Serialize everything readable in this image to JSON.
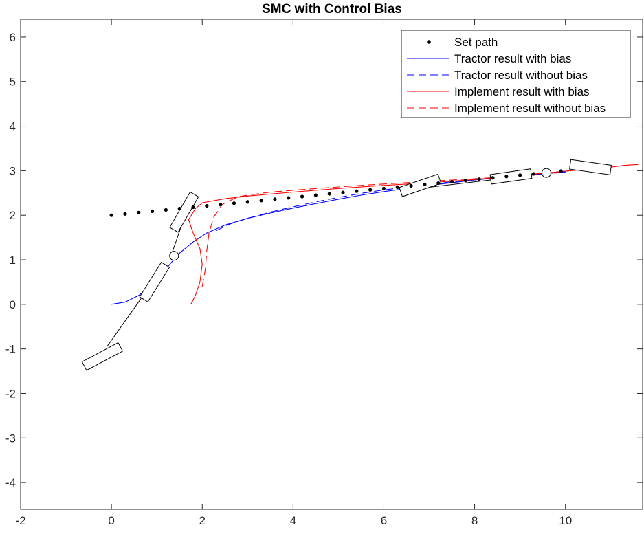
{
  "chart_data": {
    "type": "line",
    "title": "SMC with Control Bias",
    "xlabel": "",
    "ylabel": "",
    "xlim": [
      -2,
      11.7
    ],
    "ylim": [
      -4.6,
      6.4
    ],
    "x_ticks": [
      "-2",
      "0",
      "2",
      "4",
      "6",
      "8",
      "10"
    ],
    "y_ticks": [
      "-4",
      "-3",
      "-2",
      "-1",
      "0",
      "1",
      "2",
      "3",
      "4",
      "5",
      "6"
    ],
    "grid": false,
    "legend_position": "top-right",
    "legend": [
      {
        "label": "Set path",
        "style": "dots",
        "color": "#000000"
      },
      {
        "label": "Tractor result with bias",
        "style": "solid",
        "color": "#0000ff"
      },
      {
        "label": "Tractor result without bias",
        "style": "dashed",
        "color": "#0000ff"
      },
      {
        "label": "Implement result with bias",
        "style": "solid",
        "color": "#ff0000"
      },
      {
        "label": "Implement result without bias",
        "style": "dashed",
        "color": "#ff0000"
      }
    ],
    "series": [
      {
        "name": "Set path",
        "color": "#000000",
        "style": "dots",
        "points": [
          [
            0,
            2.0
          ],
          [
            0.3,
            2.03
          ],
          [
            0.6,
            2.06
          ],
          [
            0.9,
            2.09
          ],
          [
            1.2,
            2.12
          ],
          [
            1.5,
            2.15
          ],
          [
            1.8,
            2.18
          ],
          [
            2.1,
            2.21
          ],
          [
            2.4,
            2.24
          ],
          [
            2.7,
            2.27
          ],
          [
            3.0,
            2.3
          ],
          [
            3.3,
            2.33
          ],
          [
            3.6,
            2.36
          ],
          [
            3.9,
            2.39
          ],
          [
            4.2,
            2.42
          ],
          [
            4.5,
            2.45
          ],
          [
            4.8,
            2.48
          ],
          [
            5.1,
            2.51
          ],
          [
            5.4,
            2.54
          ],
          [
            5.7,
            2.57
          ],
          [
            6.0,
            2.6
          ],
          [
            6.3,
            2.63
          ],
          [
            6.6,
            2.66
          ],
          [
            6.9,
            2.69
          ],
          [
            7.2,
            2.72
          ],
          [
            7.5,
            2.75
          ],
          [
            7.8,
            2.78
          ],
          [
            8.1,
            2.81
          ],
          [
            8.4,
            2.84
          ],
          [
            8.7,
            2.87
          ],
          [
            9.0,
            2.9
          ],
          [
            9.3,
            2.93
          ],
          [
            9.6,
            2.96
          ],
          [
            9.9,
            2.99
          ]
        ]
      },
      {
        "name": "Tractor result with bias",
        "color": "#0000ff",
        "style": "solid",
        "points": [
          [
            0,
            0
          ],
          [
            0.3,
            0.05
          ],
          [
            0.6,
            0.2
          ],
          [
            0.9,
            0.45
          ],
          [
            1.2,
            0.8
          ],
          [
            1.5,
            1.15
          ],
          [
            1.8,
            1.4
          ],
          [
            2.1,
            1.6
          ],
          [
            2.5,
            1.78
          ],
          [
            3.0,
            1.93
          ],
          [
            3.5,
            2.05
          ],
          [
            4.0,
            2.16
          ],
          [
            4.5,
            2.26
          ],
          [
            5.0,
            2.36
          ],
          [
            5.5,
            2.45
          ],
          [
            6.0,
            2.53
          ],
          [
            6.5,
            2.6
          ],
          [
            7.0,
            2.67
          ],
          [
            7.5,
            2.73
          ],
          [
            8.0,
            2.79
          ],
          [
            8.5,
            2.84
          ],
          [
            9.0,
            2.89
          ],
          [
            9.5,
            2.93
          ],
          [
            10.0,
            2.97
          ]
        ]
      },
      {
        "name": "Tractor result without bias",
        "color": "#0000ff",
        "style": "dashed",
        "points": [
          [
            2.3,
            1.65
          ],
          [
            2.6,
            1.8
          ],
          [
            3.0,
            1.93
          ],
          [
            3.5,
            2.07
          ],
          [
            4.0,
            2.19
          ],
          [
            4.5,
            2.3
          ],
          [
            5.0,
            2.4
          ],
          [
            5.5,
            2.49
          ],
          [
            6.0,
            2.57
          ],
          [
            6.5,
            2.63
          ],
          [
            7.0,
            2.69
          ],
          [
            7.5,
            2.75
          ],
          [
            8.0,
            2.8
          ],
          [
            8.5,
            2.85
          ],
          [
            9.0,
            2.9
          ],
          [
            9.5,
            2.94
          ],
          [
            10.0,
            2.98
          ]
        ]
      },
      {
        "name": "Implement result with bias",
        "color": "#ff0000",
        "style": "solid",
        "points": [
          [
            1.75,
            0.0
          ],
          [
            1.85,
            0.2
          ],
          [
            1.95,
            0.5
          ],
          [
            2.0,
            0.9
          ],
          [
            1.95,
            1.25
          ],
          [
            1.8,
            1.6
          ],
          [
            1.7,
            1.9
          ],
          [
            1.85,
            2.15
          ],
          [
            2.0,
            2.28
          ],
          [
            2.5,
            2.37
          ],
          [
            3.0,
            2.43
          ],
          [
            4.0,
            2.52
          ],
          [
            5.0,
            2.6
          ],
          [
            6.0,
            2.67
          ],
          [
            7.0,
            2.73
          ],
          [
            8.0,
            2.8
          ],
          [
            9.0,
            2.9
          ],
          [
            10.0,
            2.99
          ],
          [
            10.5,
            3.03
          ],
          [
            11.0,
            3.08
          ],
          [
            11.3,
            3.12
          ],
          [
            11.6,
            3.14
          ]
        ]
      },
      {
        "name": "Implement result without bias",
        "color": "#ff0000",
        "style": "dashed",
        "points": [
          [
            2.0,
            0.4
          ],
          [
            2.07,
            0.8
          ],
          [
            2.1,
            1.2
          ],
          [
            2.15,
            1.6
          ],
          [
            2.25,
            1.95
          ],
          [
            2.45,
            2.25
          ],
          [
            2.8,
            2.42
          ],
          [
            3.5,
            2.52
          ],
          [
            4.5,
            2.6
          ],
          [
            5.5,
            2.67
          ],
          [
            6.5,
            2.73
          ],
          [
            7.5,
            2.79
          ],
          [
            8.5,
            2.85
          ],
          [
            9.5,
            2.92
          ],
          [
            10.0,
            2.97
          ]
        ]
      }
    ],
    "drawings": {
      "wheels": [
        {
          "cx": -0.2,
          "cy": -1.17,
          "len": 0.9,
          "wid": 0.22,
          "angle": 28
        },
        {
          "cx": 0.95,
          "cy": 0.5,
          "len": 0.9,
          "wid": 0.22,
          "angle": 58
        },
        {
          "cx": 1.6,
          "cy": 2.07,
          "len": 0.9,
          "wid": 0.22,
          "angle": 60
        },
        {
          "cx": 6.8,
          "cy": 2.67,
          "len": 0.9,
          "wid": 0.22,
          "angle": 19
        },
        {
          "cx": 8.8,
          "cy": 2.87,
          "len": 0.9,
          "wid": 0.22,
          "angle": 8
        },
        {
          "cx": 10.55,
          "cy": 3.08,
          "len": 0.9,
          "wid": 0.22,
          "angle": -8
        }
      ],
      "links": [
        [
          [
            -0.1,
            -0.95
          ],
          [
            0.68,
            0.17
          ]
        ],
        [
          [
            1.3,
            1.05
          ],
          [
            1.52,
            1.7
          ]
        ],
        [
          [
            6.85,
            2.61
          ],
          [
            10.25,
            3.02
          ]
        ]
      ],
      "hitches": [
        [
          1.38,
          1.09
        ],
        [
          9.58,
          2.95
        ]
      ]
    }
  }
}
